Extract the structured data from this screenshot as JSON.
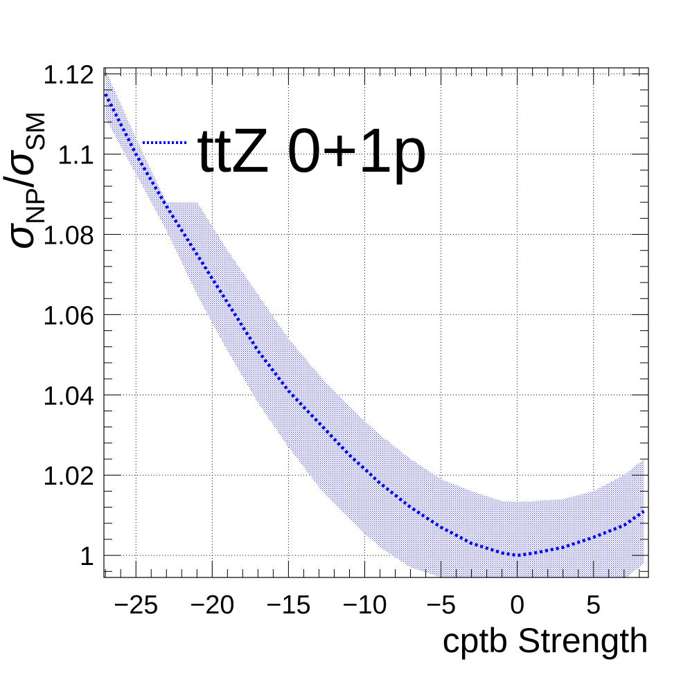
{
  "chart_data": {
    "type": "line",
    "title": "",
    "xlabel": "cptb Strength",
    "ylabel": {
      "main": "σ",
      "sub1": "NP",
      "slash": "/",
      "main2": "σ",
      "sub2": "SM"
    },
    "xlim": [
      -27.1,
      8.6
    ],
    "ylim": [
      0.9945,
      1.1215
    ],
    "x_ticks": [
      -25,
      -20,
      -15,
      -10,
      -5,
      0,
      5
    ],
    "x_tick_labels": [
      "−25",
      "−20",
      "−15",
      "−10",
      "−5",
      "0",
      "5"
    ],
    "y_ticks": [
      1.0,
      1.02,
      1.04,
      1.06,
      1.08,
      1.1,
      1.12
    ],
    "y_tick_labels": [
      "1",
      "1.02",
      "1.04",
      "1.06",
      "1.08",
      "1.1",
      "1.12"
    ],
    "grid": true,
    "legend_position": "top-left",
    "series": [
      {
        "name": "ttZ 0+1p",
        "color": "#0000ff",
        "style": "dotted",
        "central": {
          "x": [
            -27,
            -25,
            -23,
            -21,
            -19,
            -17,
            -15,
            -13,
            -11,
            -9,
            -7,
            -5,
            -3,
            -1,
            0,
            1,
            3,
            5,
            7,
            8.3
          ],
          "y": [
            1.115,
            1.1,
            1.087,
            1.075,
            1.063,
            1.051,
            1.041,
            1.033,
            1.025,
            1.018,
            1.012,
            1.007,
            1.003,
            1.0006,
            1.0,
            1.0005,
            1.002,
            1.0045,
            1.0075,
            1.011
          ]
        },
        "band": {
          "upper": [
            1.121,
            1.104,
            1.088,
            1.088,
            1.076,
            1.065,
            1.054,
            1.045,
            1.037,
            1.03,
            1.024,
            1.019,
            1.016,
            1.0135,
            1.0133,
            1.0135,
            1.014,
            1.016,
            1.02,
            1.024
          ],
          "lower": [
            1.109,
            1.095,
            1.081,
            1.065,
            1.051,
            1.038,
            1.027,
            1.017,
            1.009,
            1.002,
            0.997,
            0.9945,
            0.9945,
            0.9945,
            0.9945,
            0.9945,
            0.9945,
            0.9945,
            0.994,
            0.998
          ]
        },
        "band_color": "#0000ff"
      }
    ]
  }
}
